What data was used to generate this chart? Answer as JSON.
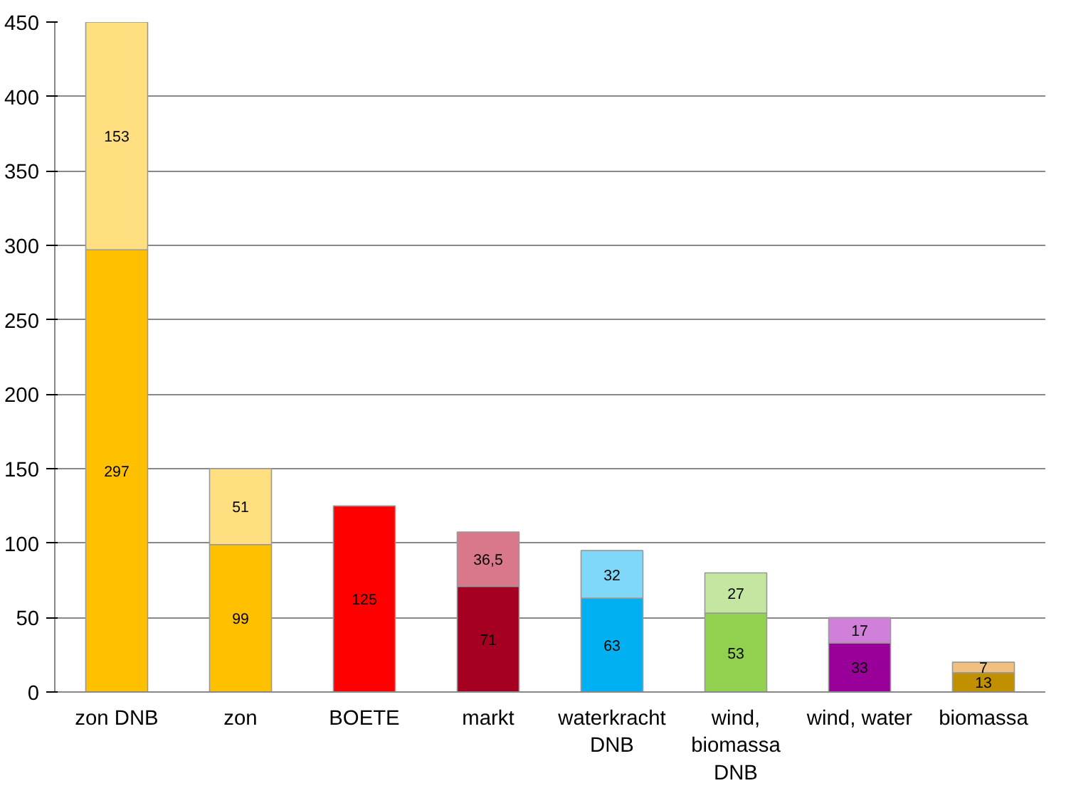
{
  "chart_data": {
    "type": "bar",
    "stacked": true,
    "categories": [
      "zon DNB",
      "zon",
      "BOETE",
      "markt",
      "waterkracht DNB",
      "wind, biomassa DNB",
      "wind, water",
      "biomassa"
    ],
    "series": [
      {
        "colors": [
          "#ffc000",
          "#ffc000",
          "#ff0000",
          "#a50021",
          "#00b0f0",
          "#92d050",
          "#990099",
          "#c09000"
        ],
        "values": [
          297,
          99,
          125,
          71,
          63,
          53,
          33,
          13
        ],
        "value_labels": [
          "297",
          "99",
          "125",
          "71",
          "63",
          "53",
          "33",
          "13"
        ]
      },
      {
        "colors": [
          "#ffdf80",
          "#ffdf80",
          null,
          "#d9788a",
          "#80d8f8",
          "#c4e6a0",
          "#d080d8",
          "#f0c080"
        ],
        "values": [
          153,
          51,
          null,
          36.5,
          32,
          27,
          17,
          7
        ],
        "value_labels": [
          "153",
          "51",
          null,
          "36,5",
          "32",
          "27",
          "17",
          "7"
        ]
      }
    ],
    "ylim": [
      0,
      450
    ],
    "yticks": [
      0,
      50,
      100,
      150,
      200,
      250,
      300,
      350,
      400,
      450
    ],
    "grid": "y"
  }
}
